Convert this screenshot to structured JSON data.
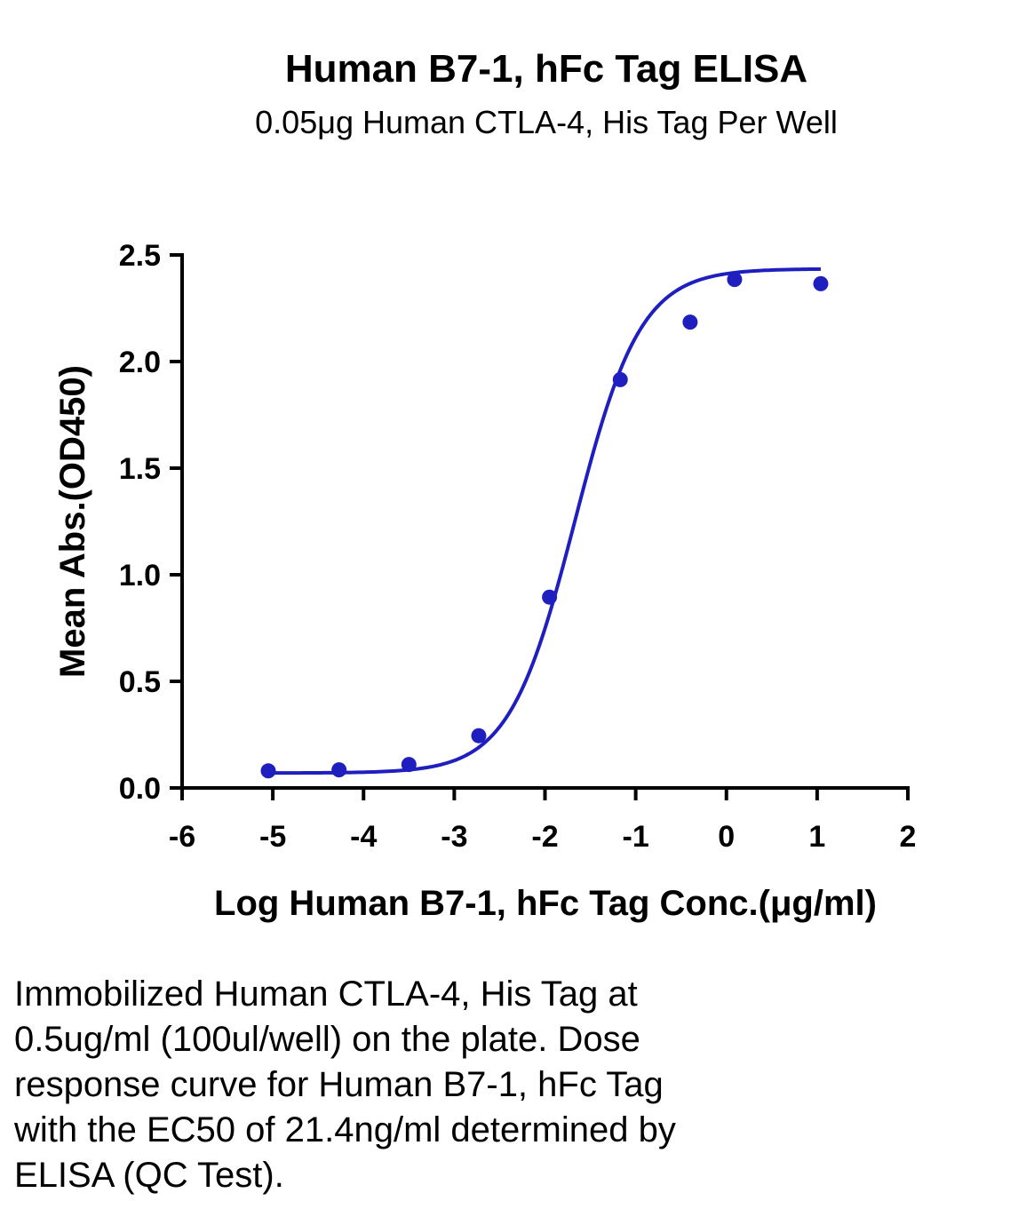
{
  "chart_data": {
    "type": "scatter",
    "title": "Human B7-1, hFc Tag ELISA",
    "subtitle": "0.05μg Human CTLA-4, His Tag Per Well",
    "xlabel": "Log Human B7-1, hFc Tag Conc.(μg/ml)",
    "ylabel": "Mean Abs.(OD450)",
    "xlim": [
      -6,
      2
    ],
    "ylim": [
      0,
      2.5
    ],
    "xticks": [
      "-6",
      "-5",
      "-4",
      "-3",
      "-2",
      "-1",
      "0",
      "1",
      "2"
    ],
    "yticks": [
      "0.0",
      "0.5",
      "1.0",
      "1.5",
      "2.0",
      "2.5"
    ],
    "grid": false,
    "series": [
      {
        "color": "#1f1fbf",
        "points": [
          {
            "x": -5.05,
            "y": 0.08
          },
          {
            "x": -4.27,
            "y": 0.085
          },
          {
            "x": -3.5,
            "y": 0.11
          },
          {
            "x": -2.73,
            "y": 0.245
          },
          {
            "x": -1.95,
            "y": 0.895
          },
          {
            "x": -1.17,
            "y": 1.915
          },
          {
            "x": -0.4,
            "y": 2.185
          },
          {
            "x": 0.09,
            "y": 2.385
          },
          {
            "x": 1.04,
            "y": 2.365
          }
        ],
        "fit": {
          "model": "4PL",
          "bottom": 0.07,
          "top": 2.435,
          "log_ec50": -1.67,
          "hill": 1.2,
          "x_range": [
            -5.05,
            1.04
          ]
        }
      }
    ]
  },
  "caption_lines": [
    "Immobilized Human CTLA-4, His Tag at",
    "0.5ug/ml (100ul/well) on the plate. Dose",
    "response curve for Human B7-1, hFc Tag",
    "with the EC50 of 21.4ng/ml determined by",
    "ELISA (QC Test)."
  ]
}
